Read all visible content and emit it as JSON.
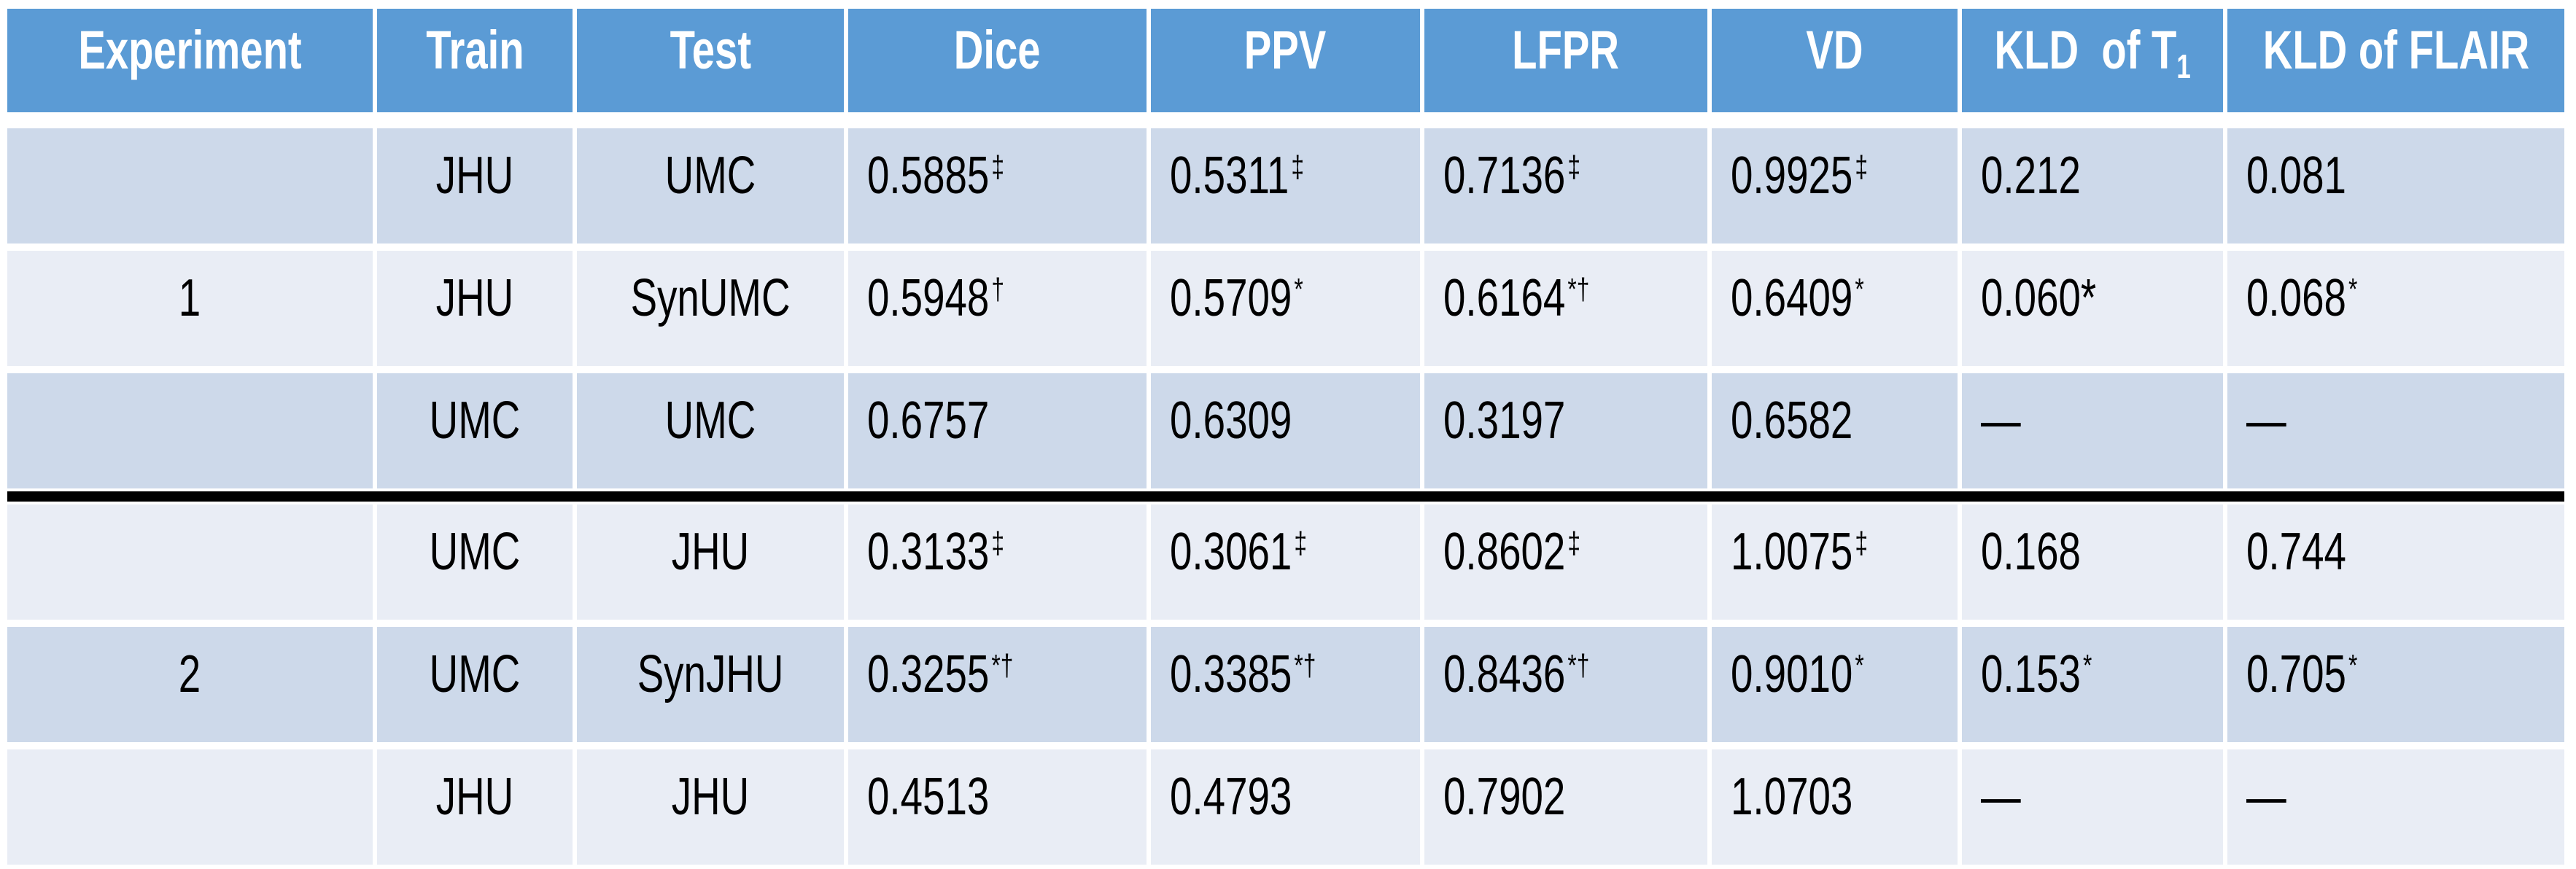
{
  "table": {
    "headers": [
      {
        "label": "Experiment"
      },
      {
        "label": "Train"
      },
      {
        "label": "Test"
      },
      {
        "label": "Dice"
      },
      {
        "label": "PPV"
      },
      {
        "label": "LFPR"
      },
      {
        "label": "VD"
      },
      {
        "label": "KLD  of T",
        "sub": "1"
      },
      {
        "label": "KLD of FLAIR"
      }
    ],
    "rows": [
      {
        "experiment": "",
        "train": "JHU",
        "test": "UMC",
        "metrics": [
          {
            "v": "0.5885",
            "sup": "‡"
          },
          {
            "v": "0.5311",
            "sup": "‡"
          },
          {
            "v": "0.7136",
            "sup": "‡"
          },
          {
            "v": "0.9925",
            "sup": "‡"
          },
          {
            "v": "0.212",
            "sup": ""
          },
          {
            "v": "0.081",
            "sup": ""
          }
        ]
      },
      {
        "experiment": "1",
        "train": "JHU",
        "test": "SynUMC",
        "metrics": [
          {
            "v": "0.5948",
            "sup": "†"
          },
          {
            "v": "0.5709",
            "sup": "*"
          },
          {
            "v": "0.6164",
            "sup": "*†"
          },
          {
            "v": "0.6409",
            "sup": "*"
          },
          {
            "v": "0.060*",
            "sup": ""
          },
          {
            "v": "0.068",
            "sup": "*"
          }
        ]
      },
      {
        "experiment": "",
        "train": "UMC",
        "test": "UMC",
        "metrics": [
          {
            "v": "0.6757",
            "sup": ""
          },
          {
            "v": "0.6309",
            "sup": ""
          },
          {
            "v": "0.3197",
            "sup": ""
          },
          {
            "v": "0.6582",
            "sup": ""
          },
          {
            "v": "—",
            "sup": ""
          },
          {
            "v": "—",
            "sup": ""
          }
        ]
      },
      {
        "experiment": "",
        "train": "UMC",
        "test": "JHU",
        "metrics": [
          {
            "v": "0.3133",
            "sup": "‡"
          },
          {
            "v": "0.3061",
            "sup": "‡"
          },
          {
            "v": "0.8602",
            "sup": "‡"
          },
          {
            "v": "1.0075",
            "sup": "‡"
          },
          {
            "v": "0.168",
            "sup": ""
          },
          {
            "v": "0.744",
            "sup": ""
          }
        ]
      },
      {
        "experiment": "2",
        "train": "UMC",
        "test": "SynJHU",
        "metrics": [
          {
            "v": "0.3255",
            "sup": "*†"
          },
          {
            "v": "0.3385",
            "sup": "*†"
          },
          {
            "v": "0.8436",
            "sup": "*†"
          },
          {
            "v": "0.9010",
            "sup": "*"
          },
          {
            "v": "0.153",
            "sup": "*"
          },
          {
            "v": "0.705",
            "sup": "*"
          }
        ]
      },
      {
        "experiment": "",
        "train": "JHU",
        "test": "JHU",
        "metrics": [
          {
            "v": "0.4513",
            "sup": ""
          },
          {
            "v": "0.4793",
            "sup": ""
          },
          {
            "v": "0.7902",
            "sup": ""
          },
          {
            "v": "1.0703",
            "sup": ""
          },
          {
            "v": "—",
            "sup": ""
          },
          {
            "v": "—",
            "sup": ""
          }
        ]
      }
    ]
  },
  "colors": {
    "header_bg": "#5b9bd5",
    "header_text": "#ffffff",
    "row_dark": "#cdd9ea",
    "row_light": "#e9edf5",
    "divider": "#000000",
    "text": "#000000"
  }
}
